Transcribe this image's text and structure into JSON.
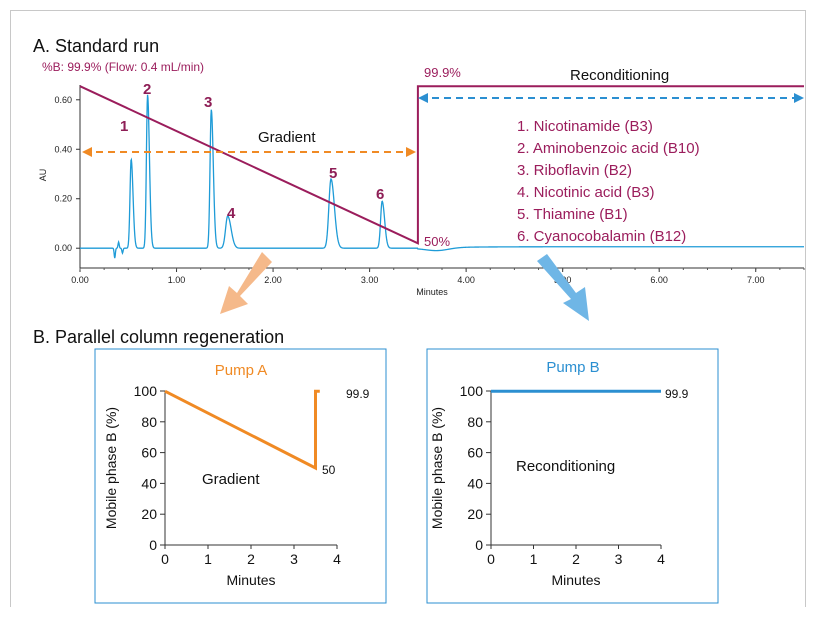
{
  "section_a": {
    "title": "A. Standard run",
    "gradient_note": "%B: 99.9% (Flow: 0.4 mL/min)",
    "label_999": "99.9%",
    "label_50": "50%",
    "label_reconditioning": "Reconditioning",
    "label_gradient": "Gradient",
    "compounds": [
      "1. Nicotinamide (B3)",
      "2. Aminobenzoic acid (B10)",
      "3. Riboflavin (B2)",
      "4. Nicotinic acid (B3)",
      "5. Thiamine (B1)",
      "6. Cyanocobalamin (B12)"
    ],
    "peak_numbers": [
      "1",
      "2",
      "3",
      "4",
      "5",
      "6"
    ]
  },
  "section_b": {
    "title": "B. Parallel column regeneration",
    "pump_a": {
      "title": "Pump A",
      "label_gradient": "Gradient",
      "label_999": "99.9",
      "label_50": "50"
    },
    "pump_b": {
      "title": "Pump B",
      "label_reconditioning": "Reconditioning",
      "label_999": "99.9"
    }
  },
  "colors": {
    "trace": "#1e9bd7",
    "gradient_line": "#9b1d5c",
    "orange": "#f08a24",
    "blue_arrow": "#2b8fd1",
    "peak_label": "#8e1e56",
    "arrow_orange_fill": "#f5b98a",
    "arrow_blue_fill": "#6fb6e6"
  },
  "chart_data": [
    {
      "type": "line",
      "name": "chromatogram",
      "xlabel": "Minutes",
      "ylabel": "AU",
      "xlim": [
        0,
        7.5
      ],
      "ylim": [
        -0.08,
        0.68
      ],
      "x_ticks": [
        "0.00",
        "1.00",
        "2.00",
        "3.00",
        "4.00",
        "5.00",
        "6.00",
        "7.00"
      ],
      "y_ticks": [
        "0.00",
        "0.20",
        "0.40",
        "0.60"
      ],
      "x_tick_values": [
        0,
        1,
        2,
        3,
        4,
        5,
        6,
        7
      ],
      "y_tick_values": [
        0,
        0.2,
        0.4,
        0.6
      ],
      "peaks": [
        {
          "label": "1",
          "x": 0.53,
          "y": 0.36,
          "w": 0.012
        },
        {
          "label": "2",
          "x": 0.7,
          "y": 0.62,
          "w": 0.012
        },
        {
          "label": "3",
          "x": 1.36,
          "y": 0.56,
          "w": 0.013
        },
        {
          "label": "4",
          "x": 1.53,
          "y": 0.13,
          "w": 0.022
        },
        {
          "label": "5",
          "x": 2.6,
          "y": 0.28,
          "w": 0.022
        },
        {
          "label": "6",
          "x": 3.13,
          "y": 0.19,
          "w": 0.016
        }
      ],
      "gradient_program": {
        "x": [
          0.0,
          3.5,
          3.5,
          7.5
        ],
        "percent_b": [
          99.9,
          50,
          99.9,
          99.9
        ]
      }
    },
    {
      "type": "line",
      "name": "Pump A",
      "xlabel": "Minutes",
      "ylabel": "Mobile phase B (%)",
      "xlim": [
        0,
        4
      ],
      "ylim": [
        0,
        100
      ],
      "x_ticks": [
        "0",
        "1",
        "2",
        "3",
        "4"
      ],
      "y_ticks": [
        "0",
        "20",
        "40",
        "60",
        "80",
        "100"
      ],
      "x": [
        0,
        3.5,
        3.5,
        3.6
      ],
      "y": [
        99.9,
        50,
        99.9,
        99.9
      ]
    },
    {
      "type": "line",
      "name": "Pump B",
      "xlabel": "Minutes",
      "ylabel": "Mobile phase B (%)",
      "xlim": [
        0,
        4
      ],
      "ylim": [
        0,
        100
      ],
      "x_ticks": [
        "0",
        "1",
        "2",
        "3",
        "4"
      ],
      "y_ticks": [
        "0",
        "20",
        "40",
        "60",
        "80",
        "100"
      ],
      "x": [
        0,
        4
      ],
      "y": [
        99.9,
        99.9
      ]
    }
  ]
}
